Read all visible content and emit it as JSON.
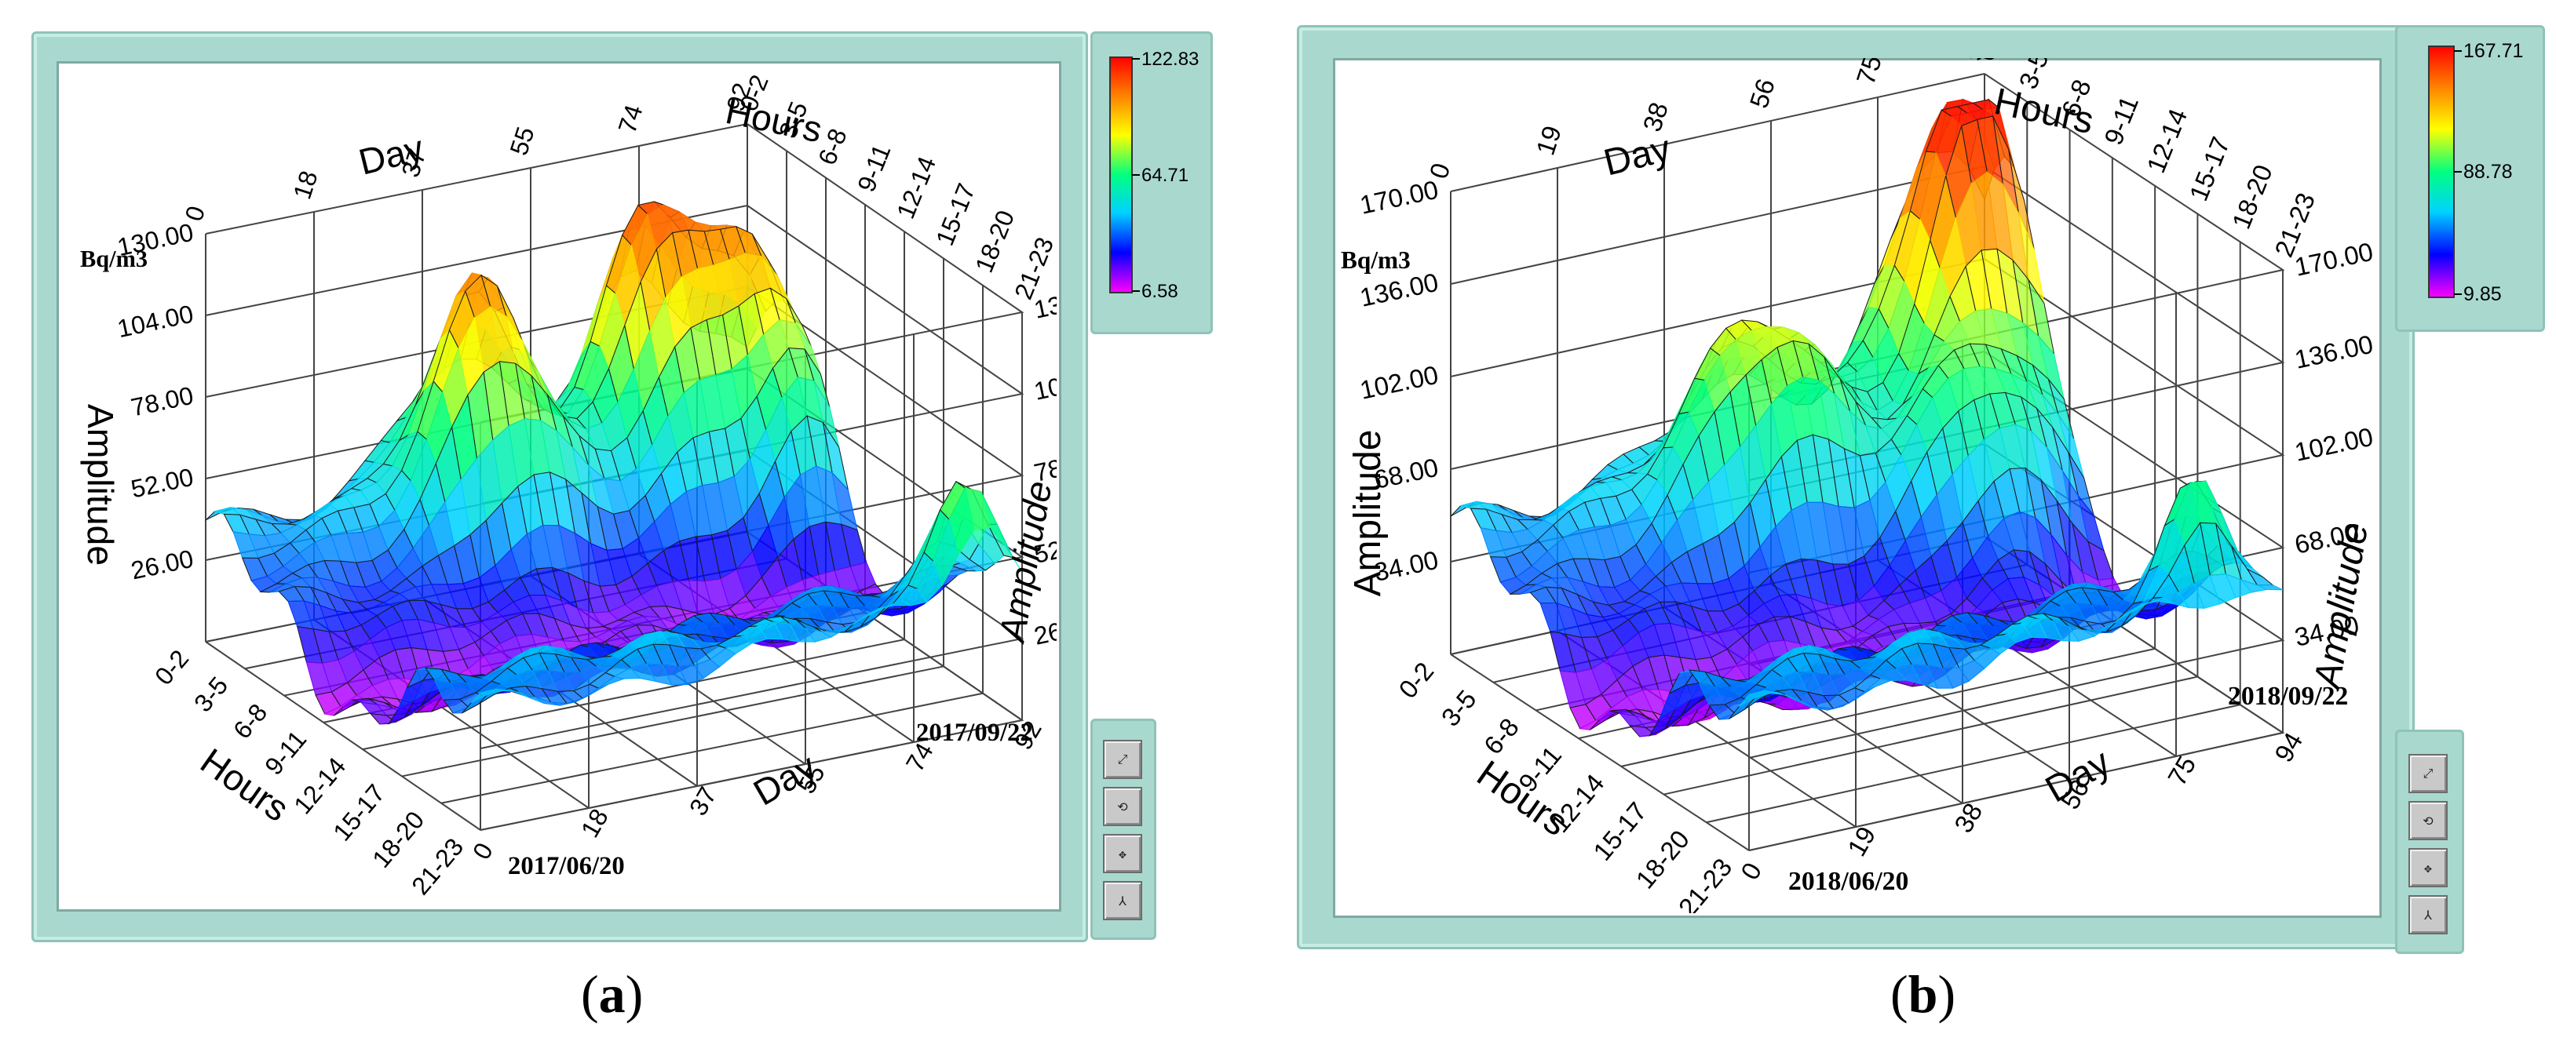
{
  "panels": [
    {
      "caption": "a",
      "unit": "Bq/m3",
      "start_date": "2017/06/20",
      "end_date": "2017/09/22",
      "colorbar": {
        "max": "122.83",
        "mid": "64.71",
        "min": "6.58"
      },
      "buttons": [
        "zoom-icon",
        "rotate-icon",
        "pan-icon",
        "axes-icon"
      ],
      "chart_data": {
        "type": "surface3d",
        "zlabel": "Amplitude",
        "x_axis_label": "Hours",
        "y_axis_label": "Day",
        "hours_ticks": [
          "0-2",
          "3-5",
          "6-8",
          "9-11",
          "12-14",
          "15-17",
          "18-20",
          "21-23"
        ],
        "day_ticks": [
          "0",
          "18",
          "37",
          "55",
          "74",
          "92"
        ],
        "z_ticks": [
          "26.00",
          "52.00",
          "78.00",
          "104.00",
          "130.00"
        ],
        "zlim": [
          0,
          130
        ],
        "colorscale": [
          "#ff00ff",
          "#0000ff",
          "#00d2ff",
          "#00ff80",
          "#ffff00",
          "#ff8000",
          "#ff0000"
        ]
      }
    },
    {
      "caption": "b",
      "unit": "Bq/m3",
      "start_date": "2018/06/20",
      "end_date": "2018/09/22",
      "colorbar": {
        "max": "167.71",
        "mid": "88.78",
        "min": "9.85"
      },
      "buttons": [
        "zoom-icon",
        "rotate-icon",
        "pan-icon",
        "axes-icon"
      ],
      "chart_data": {
        "type": "surface3d",
        "zlabel": "Amplitude",
        "x_axis_label": "Hours",
        "y_axis_label": "Day",
        "hours_ticks": [
          "0-2",
          "3-5",
          "6-8",
          "9-11",
          "12-14",
          "15-17",
          "18-20",
          "21-23"
        ],
        "day_ticks": [
          "0",
          "19",
          "38",
          "56",
          "75",
          "94"
        ],
        "z_ticks": [
          "34.00",
          "68.00",
          "102.00",
          "136.00",
          "170.00"
        ],
        "zlim": [
          0,
          170
        ],
        "colorscale": [
          "#ff00ff",
          "#0000ff",
          "#00d2ff",
          "#00ff80",
          "#ffff00",
          "#ff8000",
          "#ff0000"
        ]
      }
    }
  ]
}
